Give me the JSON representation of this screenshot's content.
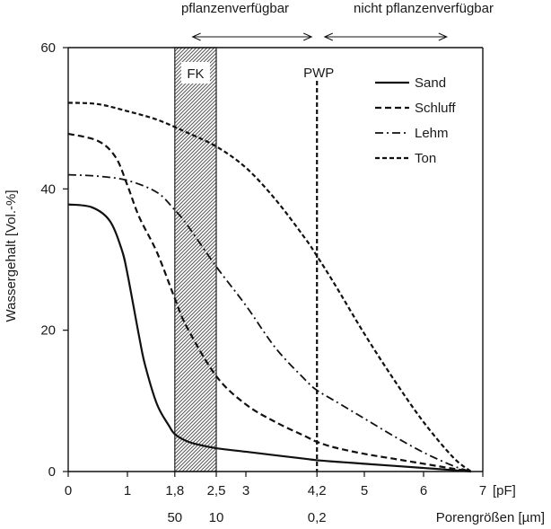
{
  "chart_data": {
    "type": "line",
    "title": "",
    "ylabel": "Wassergehalt [Vol.-%]",
    "xlabel_unit": "[pF]",
    "x2label": "Porengrößen [µm]",
    "xlim": [
      0,
      7
    ],
    "ylim": [
      0,
      60
    ],
    "x_ticks": [
      {
        "value": 0,
        "label": "0"
      },
      {
        "value": 1,
        "label": "1"
      },
      {
        "value": 1.8,
        "label": "1,8"
      },
      {
        "value": 2.5,
        "label": "2,5"
      },
      {
        "value": 3,
        "label": "3"
      },
      {
        "value": 4.2,
        "label": "4,2"
      },
      {
        "value": 5,
        "label": "5"
      },
      {
        "value": 6,
        "label": "6"
      },
      {
        "value": 7,
        "label": "7"
      }
    ],
    "y_ticks": [
      {
        "value": 0,
        "label": "0"
      },
      {
        "value": 20,
        "label": "20"
      },
      {
        "value": 40,
        "label": "40"
      },
      {
        "value": 60,
        "label": "60"
      }
    ],
    "x2_ticks": [
      {
        "value": 1.8,
        "label": "50"
      },
      {
        "value": 2.5,
        "label": "10"
      },
      {
        "value": 4.2,
        "label": "0,2"
      }
    ],
    "top_labels": {
      "available": "pflanzenverfügbar",
      "unavailable": "nicht pflanzenverfügbar"
    },
    "arrows": {
      "available": [
        2.1,
        4.2
      ],
      "unavailable": [
        4.3,
        6.3
      ]
    },
    "fk_band": {
      "label": "FK",
      "x_start": 1.8,
      "x_end": 2.5
    },
    "pwp_line": {
      "label": "PWP",
      "x": 4.2
    },
    "legend_position": "top-right",
    "grid": false,
    "series": [
      {
        "name": "Sand",
        "dash": "solid",
        "x": [
          0,
          0.4,
          0.7,
          0.9,
          1.0,
          1.2,
          1.3,
          1.5,
          1.7,
          1.8,
          2.0,
          2.2,
          2.5,
          3.0,
          3.5,
          4.0,
          4.2,
          4.5,
          5.0,
          5.5,
          6.0,
          6.5,
          6.8
        ],
        "values": [
          37.8,
          37.4,
          35.5,
          31.5,
          28.0,
          19.0,
          15.0,
          9.5,
          6.5,
          5.3,
          4.3,
          3.8,
          3.3,
          2.8,
          2.3,
          1.8,
          1.6,
          1.4,
          1.1,
          0.8,
          0.5,
          0.2,
          0
        ]
      },
      {
        "name": "Schluff",
        "dash": "dashed",
        "x": [
          0,
          0.5,
          0.8,
          1.0,
          1.2,
          1.5,
          1.8,
          2.0,
          2.5,
          3.0,
          3.5,
          4.0,
          4.2,
          4.5,
          5.0,
          5.5,
          6.0,
          6.5,
          6.8
        ],
        "values": [
          47.8,
          46.8,
          44.5,
          40.5,
          36.0,
          31.0,
          24.5,
          20.5,
          13.5,
          9.5,
          7.0,
          5.0,
          4.2,
          3.4,
          2.5,
          1.8,
          1.1,
          0.4,
          0
        ]
      },
      {
        "name": "Lehm",
        "dash": "dash-dot",
        "x": [
          0,
          0.5,
          1.0,
          1.5,
          1.8,
          2.0,
          2.5,
          3.0,
          3.5,
          4.0,
          4.2,
          4.5,
          5.0,
          5.5,
          6.0,
          6.5,
          6.8
        ],
        "values": [
          42.0,
          41.8,
          41.2,
          39.5,
          37.0,
          35.0,
          29.0,
          23.5,
          17.5,
          13.0,
          11.5,
          10.0,
          7.5,
          5.0,
          2.7,
          0.8,
          0
        ]
      },
      {
        "name": "Ton",
        "dash": "short-dash",
        "x": [
          0,
          0.5,
          1.0,
          1.5,
          2.0,
          2.5,
          3.0,
          3.5,
          4.0,
          4.2,
          4.5,
          5.0,
          5.5,
          6.0,
          6.5,
          6.8
        ],
        "values": [
          52.2,
          52.0,
          51.0,
          49.8,
          48.0,
          46.0,
          43.0,
          38.5,
          33.0,
          30.5,
          26.5,
          19.5,
          13.0,
          7.0,
          2.0,
          0
        ]
      }
    ]
  }
}
